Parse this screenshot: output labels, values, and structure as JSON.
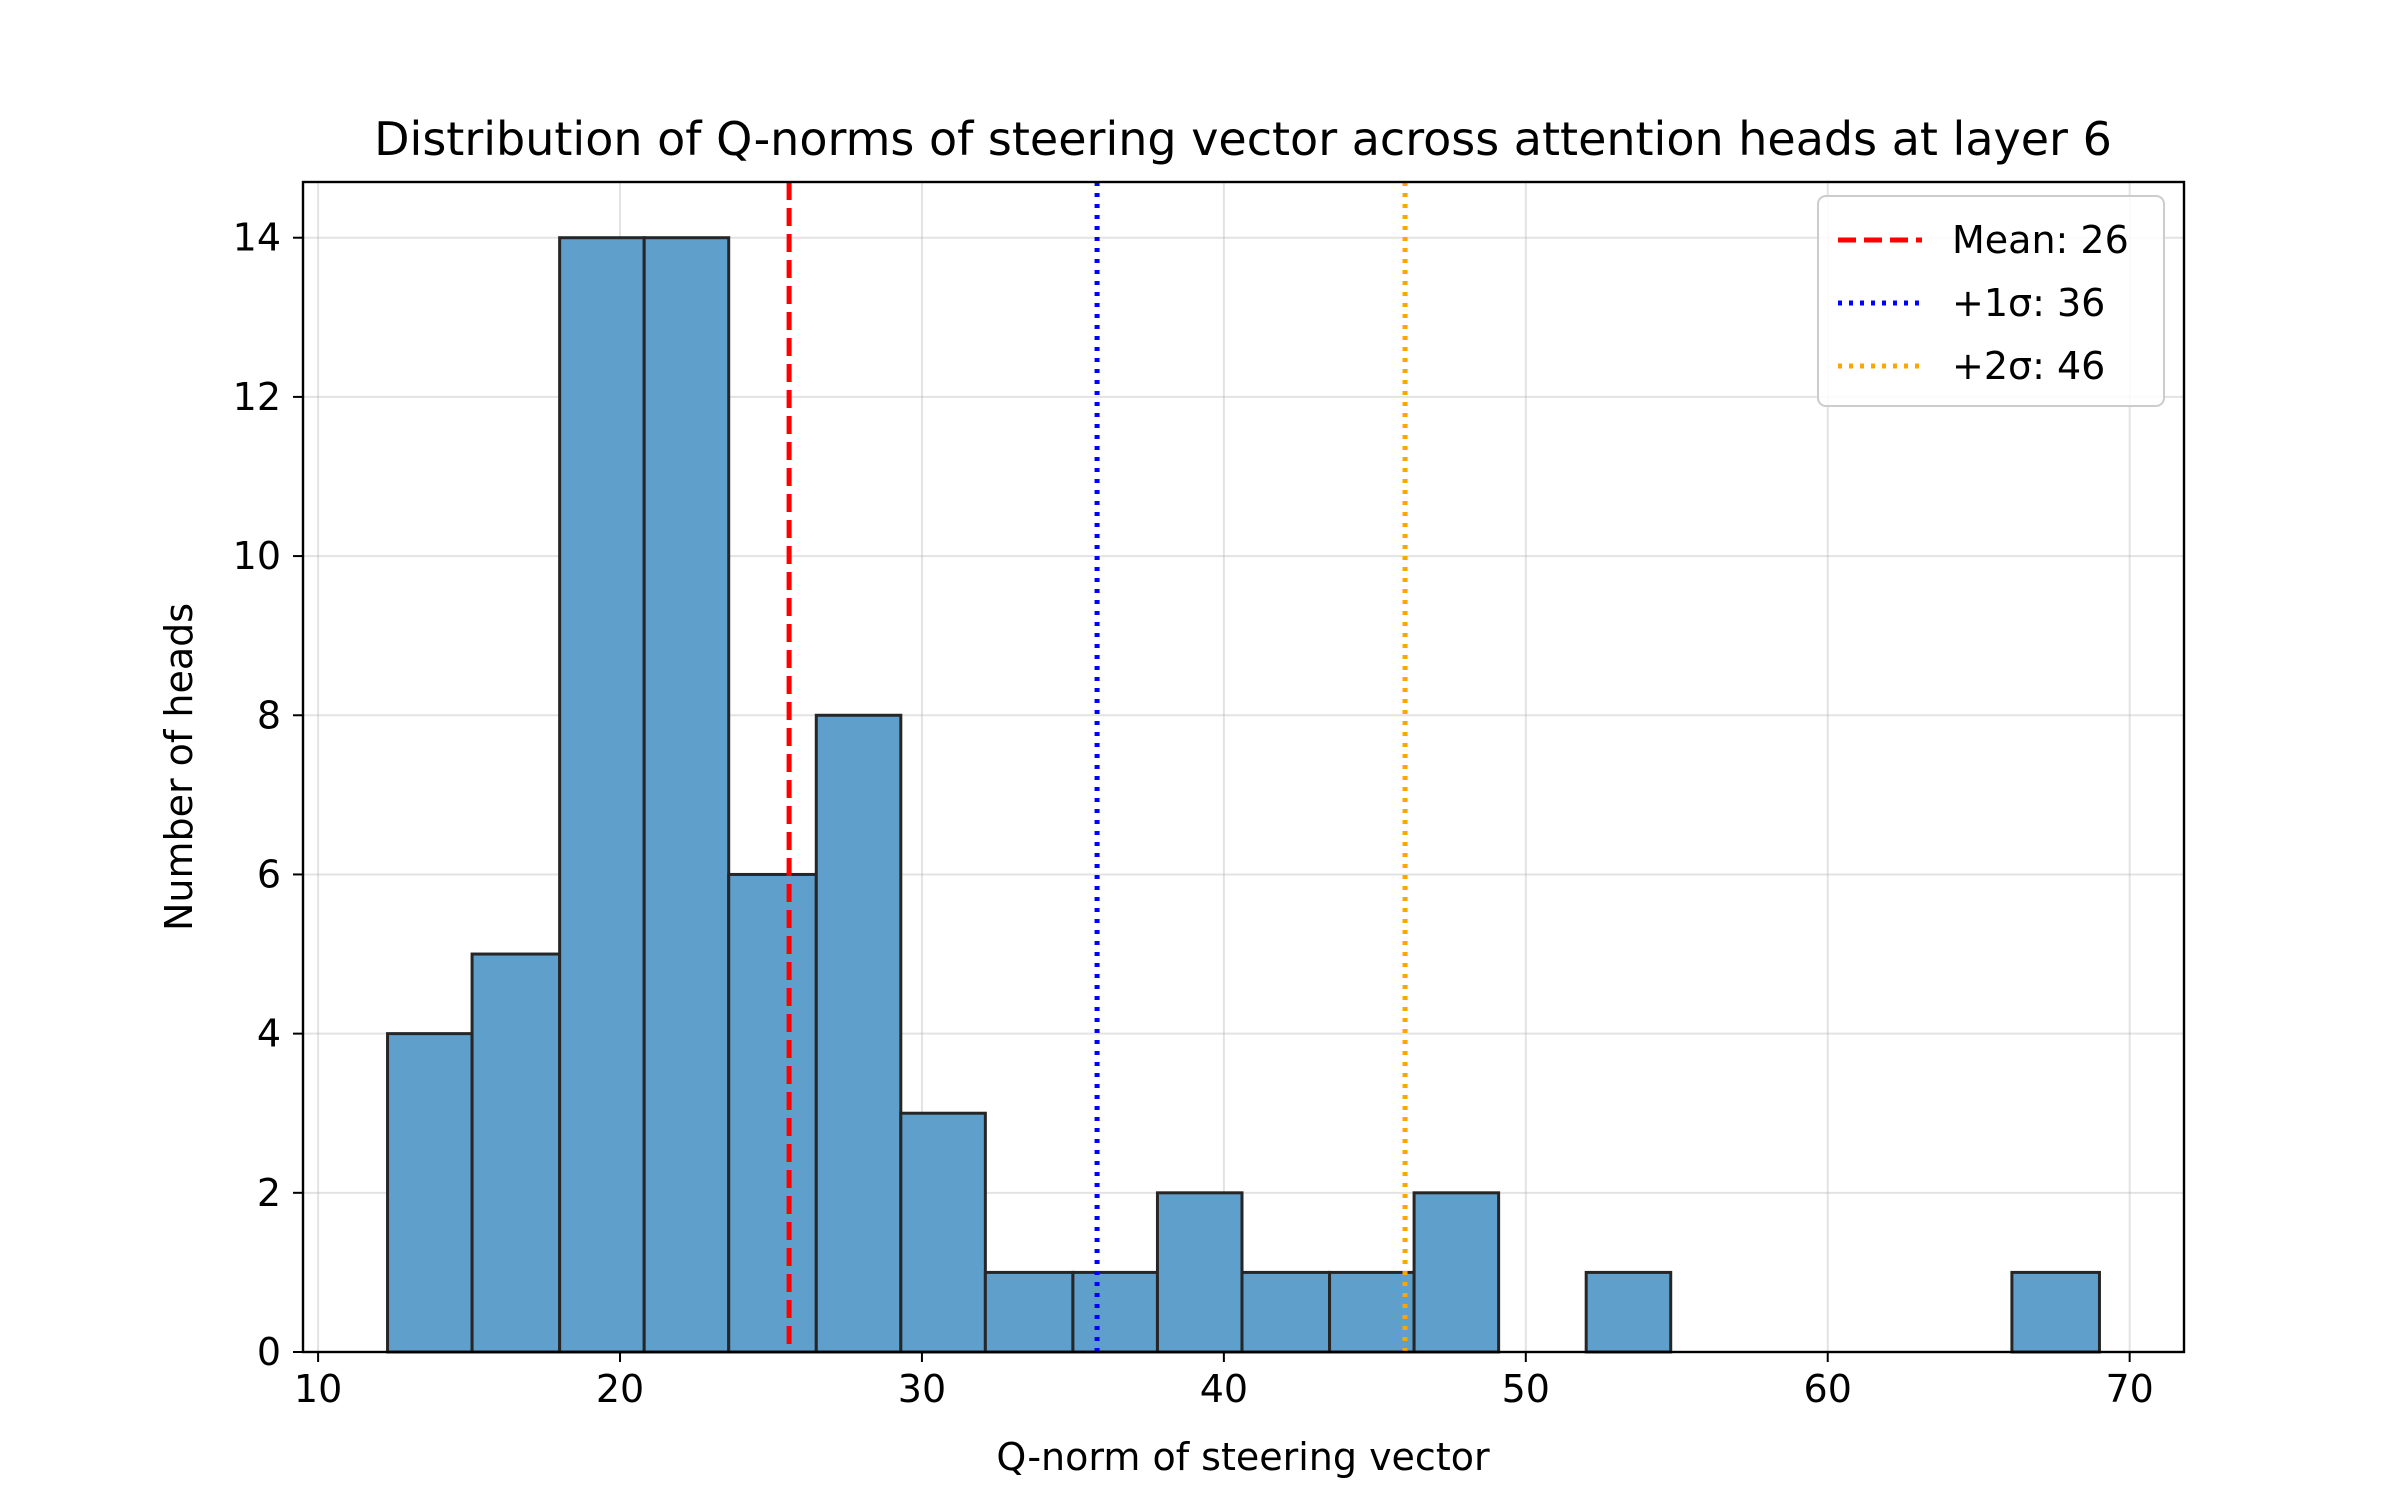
{
  "chart_data": {
    "type": "bar",
    "subtype": "histogram",
    "title": "Distribution of Q-norms of steering vector across attention heads at layer 6",
    "xlabel": "Q-norm of steering vector",
    "ylabel": "Number of heads",
    "xlim": [
      9.5,
      71.8
    ],
    "ylim": [
      0,
      14.7
    ],
    "x_ticks": [
      10,
      20,
      30,
      40,
      50,
      60,
      70
    ],
    "y_ticks": [
      0,
      2,
      4,
      6,
      8,
      10,
      12,
      14
    ],
    "grid": true,
    "bar_color": "#5f9fcc",
    "bar_edge_color": "#262626",
    "bins": [
      {
        "x0": 12.3,
        "x1": 15.1,
        "count": 4
      },
      {
        "x0": 15.1,
        "x1": 18.0,
        "count": 5
      },
      {
        "x0": 18.0,
        "x1": 20.8,
        "count": 14
      },
      {
        "x0": 20.8,
        "x1": 23.6,
        "count": 14
      },
      {
        "x0": 23.6,
        "x1": 26.5,
        "count": 6
      },
      {
        "x0": 26.5,
        "x1": 29.3,
        "count": 8
      },
      {
        "x0": 29.3,
        "x1": 32.1,
        "count": 3
      },
      {
        "x0": 32.1,
        "x1": 35.0,
        "count": 1
      },
      {
        "x0": 35.0,
        "x1": 37.8,
        "count": 1
      },
      {
        "x0": 37.8,
        "x1": 40.6,
        "count": 2
      },
      {
        "x0": 40.6,
        "x1": 43.5,
        "count": 1
      },
      {
        "x0": 43.5,
        "x1": 46.3,
        "count": 1
      },
      {
        "x0": 46.3,
        "x1": 49.1,
        "count": 2
      },
      {
        "x0": 49.1,
        "x1": 52.0,
        "count": 0
      },
      {
        "x0": 52.0,
        "x1": 54.8,
        "count": 1
      },
      {
        "x0": 54.8,
        "x1": 57.6,
        "count": 0
      },
      {
        "x0": 57.6,
        "x1": 60.5,
        "count": 0
      },
      {
        "x0": 60.5,
        "x1": 63.3,
        "count": 0
      },
      {
        "x0": 63.3,
        "x1": 66.1,
        "count": 0
      },
      {
        "x0": 66.1,
        "x1": 69.0,
        "count": 1
      }
    ],
    "vlines": [
      {
        "label": "Mean: 26",
        "x": 25.6,
        "color": "#ff0000",
        "style": "dashed"
      },
      {
        "label": "+1σ: 36",
        "x": 35.8,
        "color": "#0000ff",
        "style": "dotted"
      },
      {
        "label": "+2σ: 46",
        "x": 46.0,
        "color": "#ffa500",
        "style": "dotted"
      }
    ],
    "legend_position": "top-right"
  }
}
